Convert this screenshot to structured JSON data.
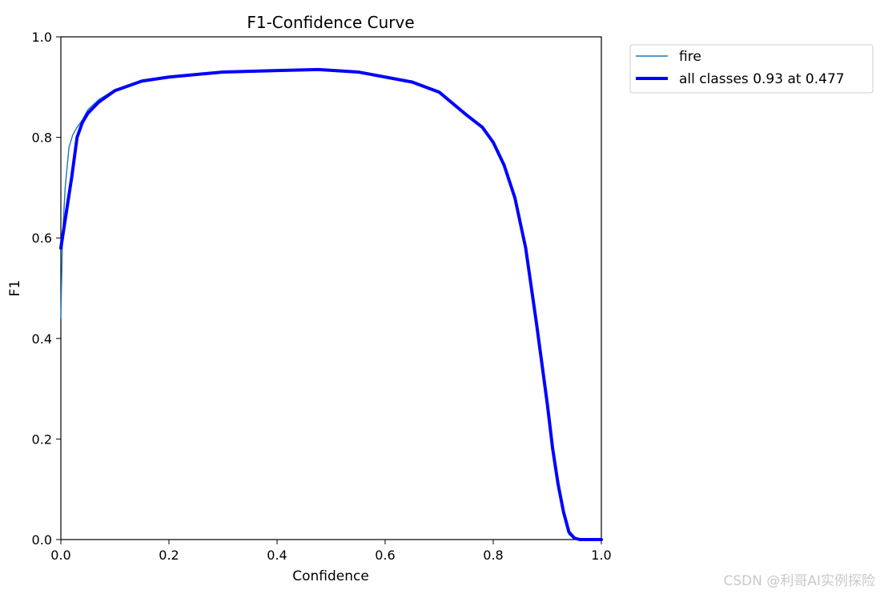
{
  "chart_data": {
    "type": "line",
    "title": "F1-Confidence Curve",
    "xlabel": "Confidence",
    "ylabel": "F1",
    "xlim": [
      0.0,
      1.0
    ],
    "ylim": [
      0.0,
      1.0
    ],
    "xticks": [
      "0.0",
      "0.2",
      "0.4",
      "0.6",
      "0.8",
      "1.0"
    ],
    "yticks": [
      "0.0",
      "0.2",
      "0.4",
      "0.6",
      "0.8",
      "1.0"
    ],
    "grid": false,
    "legend_position": "outside-top-right",
    "series": [
      {
        "name": "fire",
        "color": "#1f77b4",
        "x": [
          0.0,
          0.003,
          0.008,
          0.015,
          0.022,
          0.03,
          0.04,
          0.05,
          0.07,
          0.1,
          0.15,
          0.2,
          0.3,
          0.4,
          0.477,
          0.55,
          0.65,
          0.7,
          0.75,
          0.78,
          0.8,
          0.82,
          0.84,
          0.86,
          0.88,
          0.9,
          0.91,
          0.92,
          0.93,
          0.94,
          0.95,
          0.96,
          1.0
        ],
        "y": [
          0.44,
          0.6,
          0.7,
          0.78,
          0.805,
          0.82,
          0.835,
          0.855,
          0.875,
          0.895,
          0.912,
          0.92,
          0.93,
          0.933,
          0.935,
          0.93,
          0.91,
          0.89,
          0.845,
          0.82,
          0.79,
          0.745,
          0.68,
          0.58,
          0.43,
          0.26,
          0.17,
          0.1,
          0.05,
          0.01,
          0.002,
          0.0,
          0.0
        ]
      },
      {
        "name": "all classes 0.93 at 0.477",
        "color": "#0000ff",
        "x": [
          0.0,
          0.01,
          0.02,
          0.03,
          0.04,
          0.05,
          0.07,
          0.1,
          0.15,
          0.2,
          0.3,
          0.4,
          0.477,
          0.55,
          0.65,
          0.7,
          0.75,
          0.78,
          0.8,
          0.82,
          0.84,
          0.86,
          0.88,
          0.9,
          0.91,
          0.92,
          0.93,
          0.94,
          0.95,
          0.96,
          1.0
        ],
        "y": [
          0.58,
          0.65,
          0.72,
          0.8,
          0.83,
          0.848,
          0.87,
          0.893,
          0.912,
          0.92,
          0.93,
          0.933,
          0.935,
          0.93,
          0.91,
          0.89,
          0.845,
          0.82,
          0.79,
          0.745,
          0.68,
          0.58,
          0.43,
          0.27,
          0.18,
          0.11,
          0.055,
          0.015,
          0.003,
          0.0,
          0.0
        ]
      }
    ]
  },
  "watermark": "CSDN @利哥AI实例探险"
}
